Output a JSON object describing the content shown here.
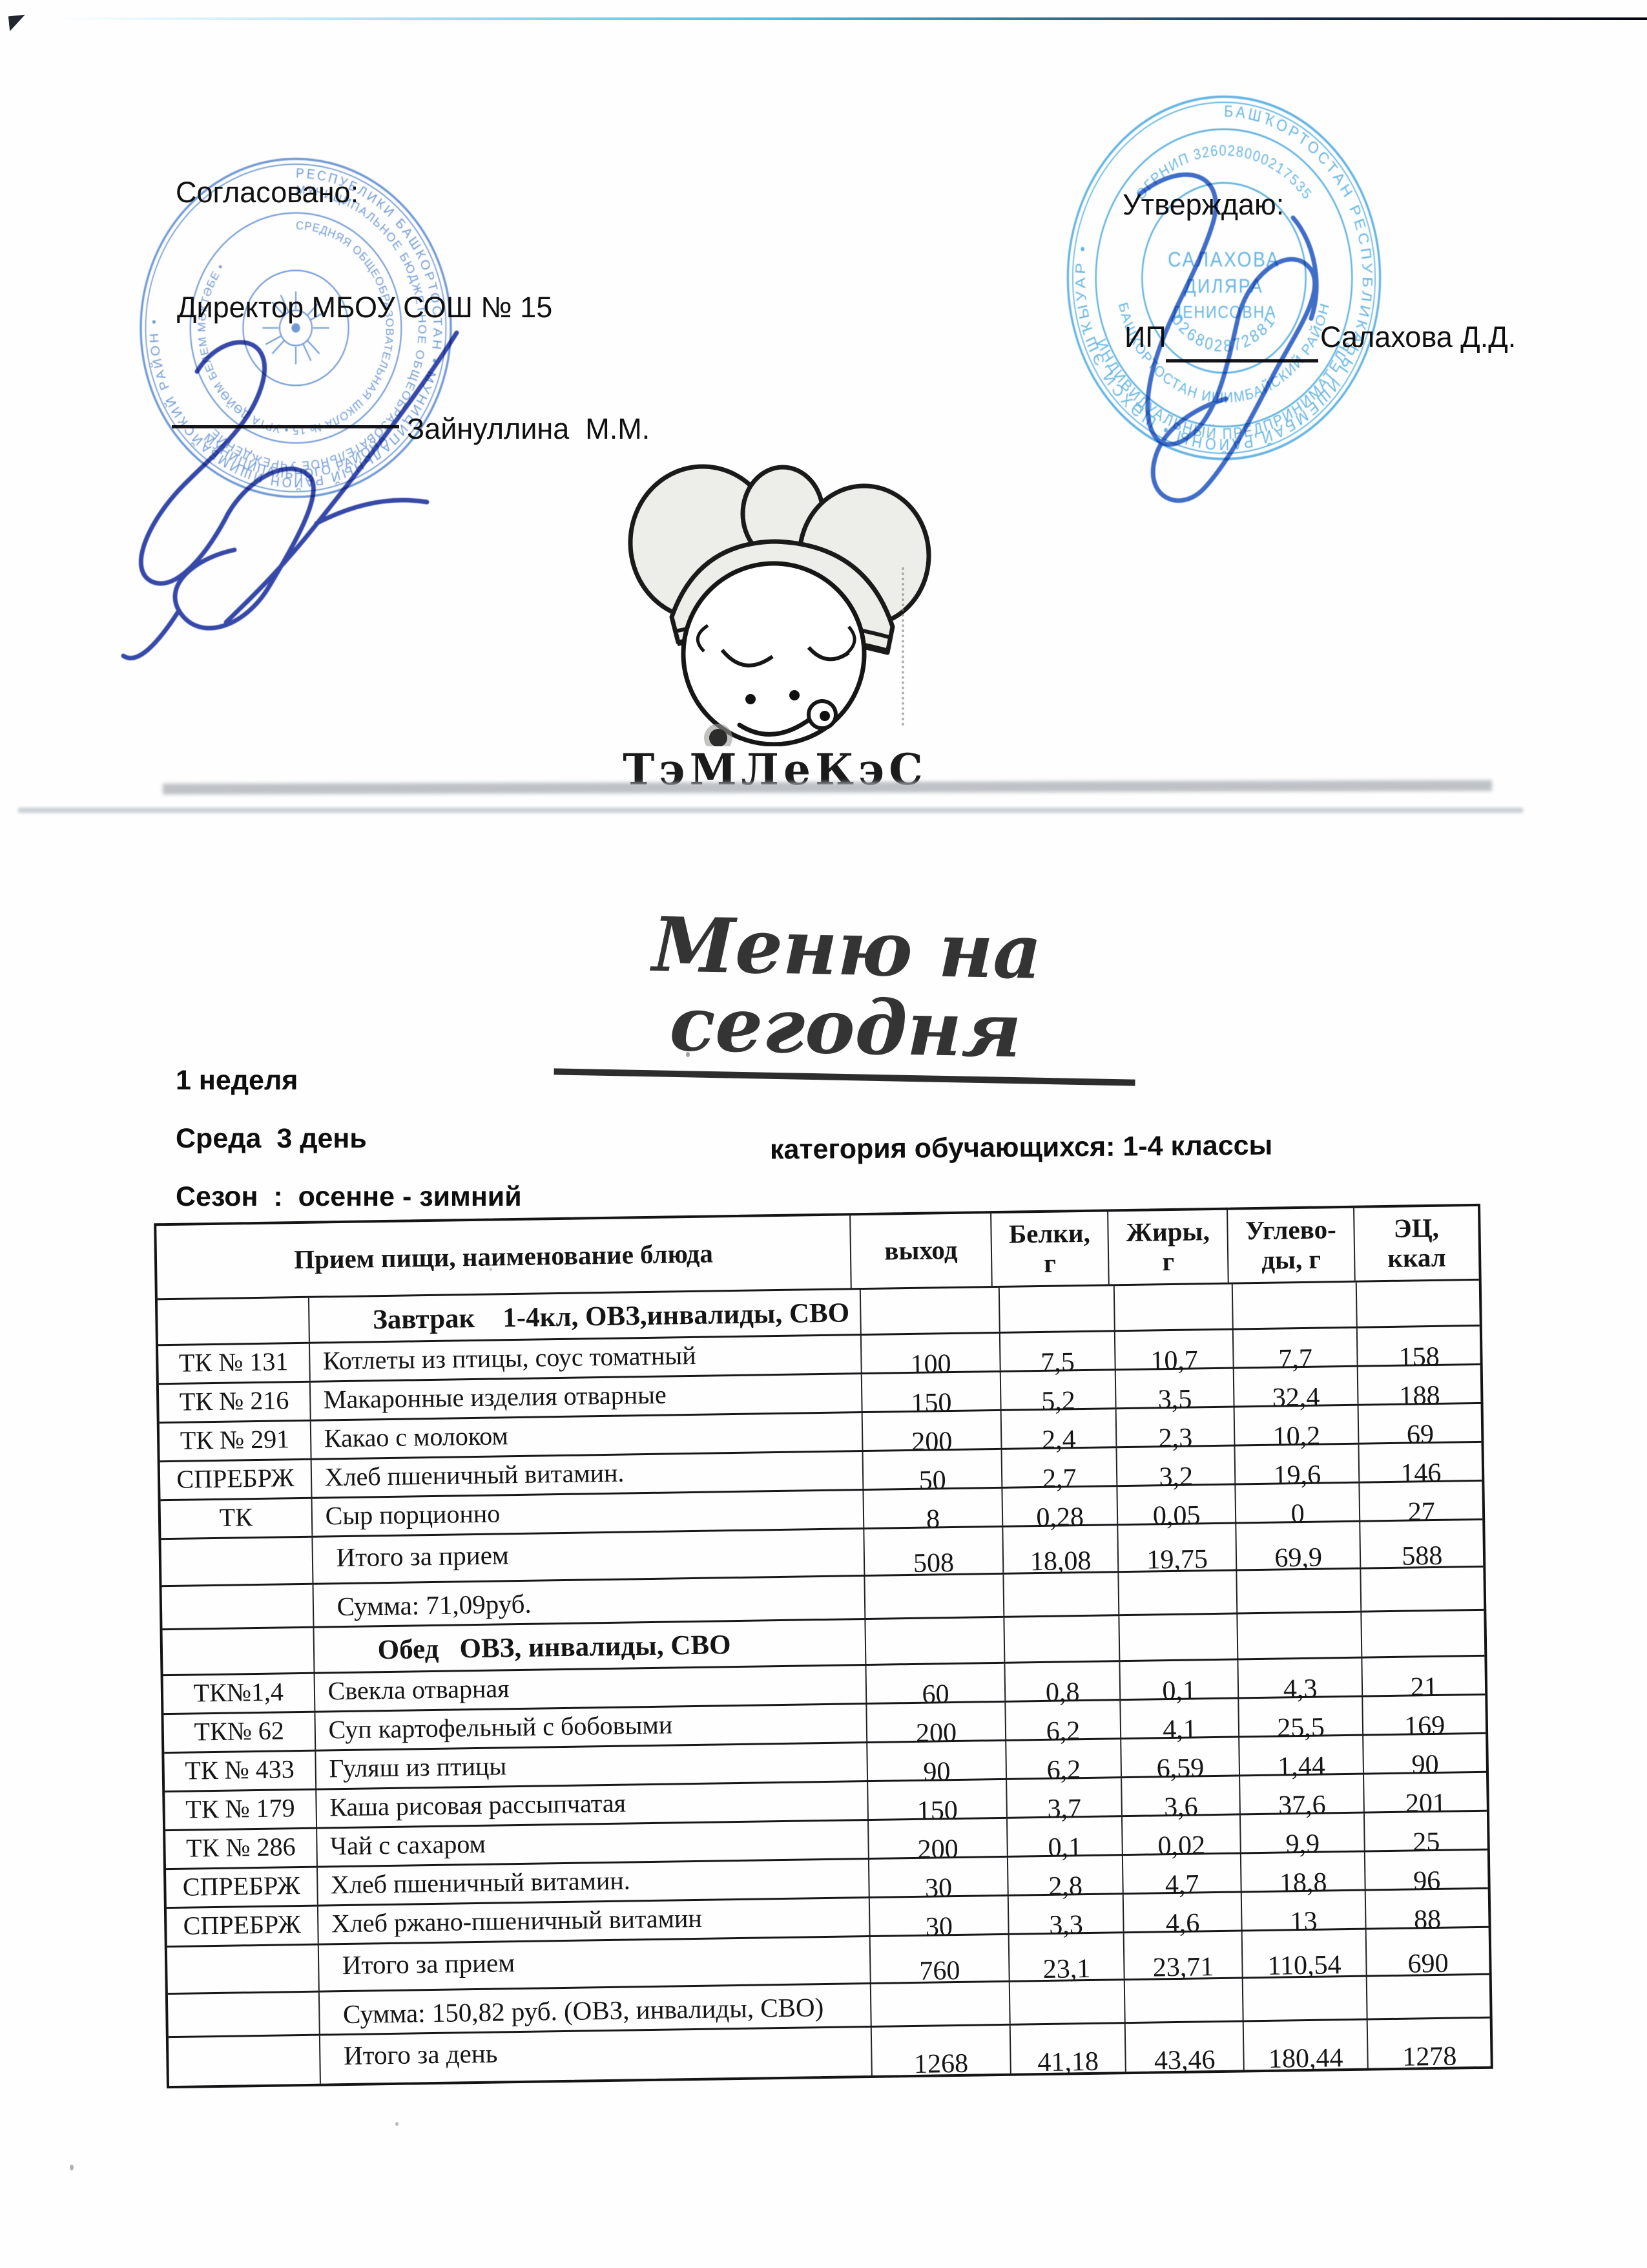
{
  "colors": {
    "stamp_left": "#4f82cc",
    "stamp_right": "#3fa3dc",
    "sig_left": "#2b3fa5",
    "sig_right": "#3565c5",
    "ink": "#151515"
  },
  "approval_left": {
    "label": "Согласовано:",
    "director_line": "Директор МБОУ СОШ № 15",
    "signatory": "Зайнуллина  М.М."
  },
  "approval_right": {
    "label": "Утверждаю:",
    "prefix": "ИП",
    "signatory": "Салахова Д.Д."
  },
  "stamp_left_text": {
    "ring_outer": "РЕСПУБЛИКИ БАШКОРТОСТАН • МУНИЦИПАЛЬНЫЙ РАЙОН ИШИМБАЙСКИЙ РАЙОН •",
    "ring_mid": "МУНИЦИПАЛЬНОЕ БЮДЖЕТНОЕ ОБЩЕОБРАЗОВАТЕЛЬНОЕ УЧРЕЖДЕНИЕ",
    "ring_inner": "СРЕДНЯЯ ОБЩЕОБРАЗОВАТЕЛЬНАЯ ШКОЛА № 15 • УРТА ДӨЙӨМ БЕЛЕМ МӘКТӘБЕ •",
    "ring_bottom": "МУНИЦИПАЛЬНОГО РАЙОНА"
  },
  "stamp_right_text": {
    "ring_outer": "БАШҠОРТОСТАН РЕСПУБЛИКАҺЫ ИШЕМБАЙ РАЙОНЫ • ШӘХСИ ЭШҠЫУАР •",
    "ring_bottom_outer": "ИНДИВИДУАЛЬНЫЙ ПРЕДПРИНИМАТЕЛЬ",
    "ring_bottom_mid": "БАШКОРТОСТАН ИШИМБАЙСКИЙ РАЙОН",
    "ogrnip": "ОГРНИП 326028000217535",
    "inn": "026802872881",
    "center1": "САЛАХОВА",
    "center2": "ДИЛЯРА",
    "center3": "ДЕНИСОВНА"
  },
  "logo": {
    "brand": "ТэМЛеКэС"
  },
  "title": {
    "text": "Меню на сегодня"
  },
  "info": {
    "week": "1 неделя",
    "day": "Среда  3 день",
    "category": "категория обучающихся: 1-4 классы",
    "season": "Сезон  :  осенне - зимний"
  },
  "table": {
    "headers": {
      "dish": "Прием пищи, наименование блюда",
      "out": "выход",
      "protein": "Белки,",
      "protein_unit": "г",
      "fat": "Жиры,",
      "fat_unit": "г",
      "carbs": "Углево-",
      "carbs_unit": "ды, г",
      "kcal": "ЭЦ,",
      "kcal_unit": "ккал"
    },
    "rows": [
      {
        "type": "section",
        "label": "Завтрак    1-4кл, ОВЗ,инвалиды, СВО"
      },
      {
        "type": "dish",
        "tk": "ТК № 131",
        "name": "Котлеты из птицы, соус томатный",
        "out": "100",
        "protein": "7,5",
        "fat": "10,7",
        "carbs": "7,7",
        "kcal": "158"
      },
      {
        "type": "dish",
        "tk": "ТК № 216",
        "name": "Макаронные изделия отварные",
        "out": "150",
        "protein": "5,2",
        "fat": "3,5",
        "carbs": "32,4",
        "kcal": "188"
      },
      {
        "type": "dish",
        "tk": "ТК № 291",
        "name": "Какао с молоком",
        "out": "200",
        "protein": "2,4",
        "fat": "2,3",
        "carbs": "10,2",
        "kcal": "69"
      },
      {
        "type": "dish",
        "tk": "СПРЕБРЖ",
        "name": "Хлеб пшеничный витамин.",
        "out": "50",
        "protein": "2,7",
        "fat": "3,2",
        "carbs": "19,6",
        "kcal": "146"
      },
      {
        "type": "dish",
        "tk": "ТК",
        "name": "Сыр порционно",
        "out": "8",
        "protein": "0,28",
        "fat": "0,05",
        "carbs": "0",
        "kcal": "27"
      },
      {
        "type": "total",
        "label": "Итого за прием",
        "out": "508",
        "protein": "18,08",
        "fat": "19,75",
        "carbs": "69,9",
        "kcal": "588"
      },
      {
        "type": "sum",
        "label": "Сумма: 71,09руб."
      },
      {
        "type": "section",
        "label": "Обед   ОВЗ, инвалиды, СВО"
      },
      {
        "type": "dish",
        "tk": "ТК№1,4",
        "name": "Свекла отварная",
        "out": "60",
        "protein": "0,8",
        "fat": "0,1",
        "carbs": "4,3",
        "kcal": "21"
      },
      {
        "type": "dish",
        "tk": "ТК№ 62",
        "name": "Суп картофельный с бобовыми",
        "out": "200",
        "protein": "6,2",
        "fat": "4,1",
        "carbs": "25,5",
        "kcal": "169"
      },
      {
        "type": "dish",
        "tk": "ТК № 433",
        "name": "Гуляш из птицы",
        "out": "90",
        "protein": "6,2",
        "fat": "6,59",
        "carbs": "1,44",
        "kcal": "90"
      },
      {
        "type": "dish",
        "tk": "ТК № 179",
        "name": "Каша рисовая рассыпчатая",
        "out": "150",
        "protein": "3,7",
        "fat": "3,6",
        "carbs": "37,6",
        "kcal": "201"
      },
      {
        "type": "dish",
        "tk": "ТК № 286",
        "name": "Чай с сахаром",
        "out": "200",
        "protein": "0,1",
        "fat": "0,02",
        "carbs": "9,9",
        "kcal": "25"
      },
      {
        "type": "dish",
        "tk": "СПРЕБРЖ",
        "name": "Хлеб пшеничный витамин.",
        "out": "30",
        "protein": "2,8",
        "fat": "4,7",
        "carbs": "18,8",
        "kcal": "96"
      },
      {
        "type": "dish",
        "tk": "СПРЕБРЖ",
        "name": "Хлеб ржано-пшеничный витамин",
        "out": "30",
        "protein": "3,3",
        "fat": "4,6",
        "carbs": "13",
        "kcal": "88"
      },
      {
        "type": "total",
        "label": "Итого за прием",
        "out": "760",
        "protein": "23,1",
        "fat": "23,71",
        "carbs": "110,54",
        "kcal": "690"
      },
      {
        "type": "sum",
        "label": "Сумма: 150,82 руб. (ОВЗ, инвалиды, СВО)"
      },
      {
        "type": "day",
        "label": "Итого за день",
        "out": "1268",
        "protein": "41,18",
        "fat": "43,46",
        "carbs": "180,44",
        "kcal": "1278"
      }
    ]
  }
}
